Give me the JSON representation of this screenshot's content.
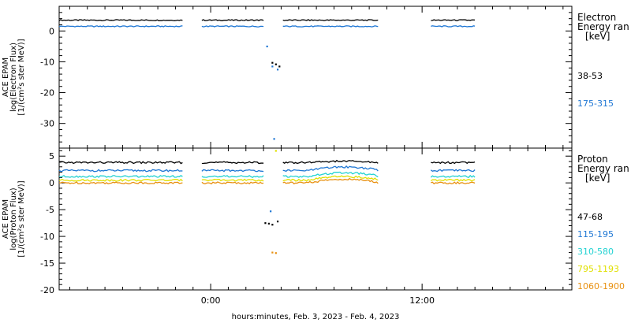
{
  "colors": {
    "black": "#000000",
    "blue": "#1f77d4",
    "cyan": "#22d2d2",
    "yellow": "#e0e000",
    "orange": "#e89010"
  },
  "xlabel": "hours:minutes, Feb.  3, 2023 - Feb.  4, 2023",
  "x_ticks": [
    "0:00",
    "12:00"
  ],
  "chart_data": [
    {
      "type": "line",
      "ylabel_lines": [
        "ACE EPAM",
        "log(Electron Flux)",
        "[1/(cm²s ster MeV)]"
      ],
      "ylim": [
        -38,
        8
      ],
      "y_ticks": [
        0,
        -10,
        -20,
        -30
      ],
      "legend": {
        "heading_lines": [
          "Electron",
          "Energy ran",
          "[keV]"
        ],
        "entries": [
          {
            "label": "38-53",
            "color_key": "black"
          },
          {
            "label": "175-315",
            "color_key": "blue"
          }
        ]
      },
      "x_hours": [
        -8.6,
        -1.6,
        -0.5,
        3.0,
        4.1,
        9.5,
        12.5,
        15.0
      ],
      "segments": [
        [
          -8.6,
          -1.6
        ],
        [
          -0.5,
          3.0
        ],
        [
          4.1,
          9.5
        ],
        [
          12.5,
          15.0
        ]
      ],
      "series": [
        {
          "color_key": "black",
          "level": 3.5,
          "glitch": [
            [
              3.5,
              -10.3
            ],
            [
              3.7,
              -10.8
            ],
            [
              3.9,
              -11.5
            ]
          ]
        },
        {
          "color_key": "blue",
          "level": 1.5,
          "glitch": [
            [
              3.2,
              -5.0
            ],
            [
              3.5,
              -11.5
            ],
            [
              3.8,
              -12.5
            ],
            [
              3.6,
              -35.0
            ]
          ]
        }
      ]
    },
    {
      "type": "line",
      "ylabel_lines": [
        "ACE EPAM",
        "log(Proton Flux)",
        "[1/(cm²s ster MeV)]"
      ],
      "ylim": [
        -20,
        6.5
      ],
      "y_ticks": [
        5,
        0,
        -5,
        -10,
        -15,
        -20
      ],
      "legend": {
        "heading_lines": [
          "Proton",
          "Energy ran",
          "[keV]"
        ],
        "entries": [
          {
            "label": "47-68",
            "color_key": "black"
          },
          {
            "label": "115-195",
            "color_key": "blue"
          },
          {
            "label": "310-580",
            "color_key": "cyan"
          },
          {
            "label": "795-1193",
            "color_key": "yellow"
          },
          {
            "label": "1060-1900",
            "color_key": "orange"
          }
        ]
      },
      "x_hours": [
        -8.6,
        -1.6,
        -0.5,
        3.0,
        4.1,
        9.5,
        12.5,
        15.0
      ],
      "segments": [
        [
          -8.6,
          -1.6
        ],
        [
          -0.5,
          3.0
        ],
        [
          4.1,
          9.5
        ],
        [
          12.5,
          15.0
        ]
      ],
      "series": [
        {
          "color_key": "black",
          "level": 3.8,
          "glitch": [
            [
              3.1,
              -7.5
            ],
            [
              3.3,
              -7.6
            ],
            [
              3.5,
              -7.8
            ],
            [
              3.8,
              -7.2
            ]
          ]
        },
        {
          "color_key": "blue",
          "level": 2.3,
          "glitch": [
            [
              3.4,
              -5.3
            ]
          ]
        },
        {
          "color_key": "cyan",
          "level": 1.2,
          "glitch": []
        },
        {
          "color_key": "yellow",
          "level": 0.5,
          "glitch": [
            [
              3.7,
              6.0
            ]
          ]
        },
        {
          "color_key": "orange",
          "level": 0.0,
          "glitch": [
            [
              3.5,
              -13.0
            ],
            [
              3.7,
              -13.1
            ]
          ]
        }
      ]
    }
  ]
}
